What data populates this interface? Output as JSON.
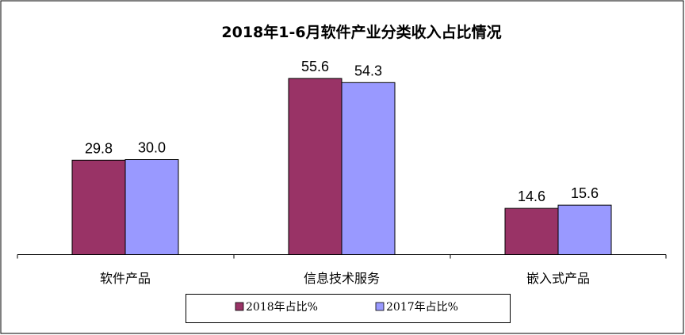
{
  "chart_data": {
    "type": "bar",
    "title": "2018年1-6月软件产业分类收入占比情况",
    "categories": [
      "软件产品",
      "信息技术服务",
      "嵌入式产品"
    ],
    "series": [
      {
        "name": "2018年占比%",
        "values": [
          29.8,
          55.6,
          14.6
        ],
        "color": "#993366"
      },
      {
        "name": "2017年占比%",
        "values": [
          30.0,
          54.3,
          15.6
        ],
        "color": "#9999ff"
      }
    ],
    "value_labels": [
      [
        "29.8",
        "55.6",
        "14.6"
      ],
      [
        "30.0",
        "54.3",
        "15.6"
      ]
    ],
    "ylim": [
      0,
      70
    ],
    "grid": false,
    "legend_position": "bottom"
  }
}
